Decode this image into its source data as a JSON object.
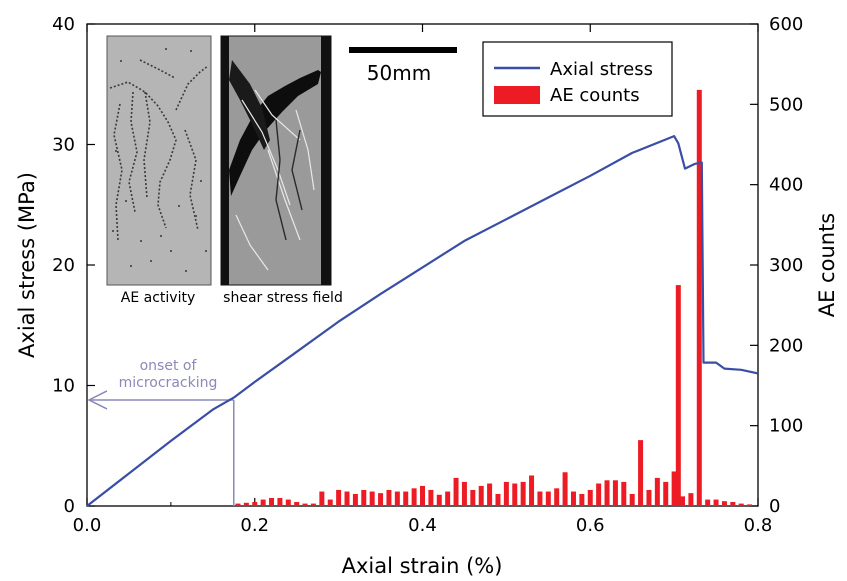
{
  "chart_data": {
    "type": "bar",
    "xlabel": "Axial strain (%)",
    "ylabel": "Axial stress (MPa)",
    "y2label": "AE counts",
    "xlim": [
      0,
      0.8
    ],
    "ylim": [
      0,
      40
    ],
    "y2lim": [
      0,
      600
    ],
    "x_ticks": [
      "0.0",
      "0.2",
      "0.4",
      "0.6",
      "0.8"
    ],
    "y_ticks": [
      "0",
      "10",
      "20",
      "30",
      "40"
    ],
    "y2_ticks": [
      "0",
      "100",
      "200",
      "300",
      "400",
      "500",
      "600"
    ],
    "legend": {
      "position": "top-right",
      "entries": [
        {
          "name": "Axial stress",
          "kind": "line"
        },
        {
          "name": "AE counts",
          "kind": "bar"
        }
      ]
    },
    "colors": {
      "stress": "#3a4ea6",
      "ae": "#ed1c24",
      "annotation": "#8c89b8"
    },
    "series": [
      {
        "name": "Axial stress",
        "axis": "left",
        "x": [
          0.0,
          0.05,
          0.1,
          0.15,
          0.175,
          0.2,
          0.25,
          0.3,
          0.35,
          0.4,
          0.45,
          0.5,
          0.55,
          0.6,
          0.65,
          0.7,
          0.705,
          0.713,
          0.725,
          0.733,
          0.735,
          0.74,
          0.75,
          0.76,
          0.78,
          0.8
        ],
        "y": [
          0.0,
          2.7,
          5.4,
          8.0,
          9.0,
          10.3,
          12.8,
          15.3,
          17.6,
          19.8,
          22.0,
          23.8,
          25.6,
          27.4,
          29.3,
          30.7,
          30.1,
          28.0,
          28.4,
          28.5,
          11.9,
          11.9,
          11.9,
          11.4,
          11.3,
          11.0
        ]
      },
      {
        "name": "AE counts",
        "axis": "right",
        "x": [
          0.18,
          0.19,
          0.2,
          0.21,
          0.22,
          0.23,
          0.24,
          0.25,
          0.26,
          0.27,
          0.28,
          0.29,
          0.3,
          0.31,
          0.32,
          0.33,
          0.34,
          0.35,
          0.36,
          0.37,
          0.38,
          0.39,
          0.4,
          0.41,
          0.42,
          0.43,
          0.44,
          0.45,
          0.46,
          0.47,
          0.48,
          0.49,
          0.5,
          0.51,
          0.52,
          0.53,
          0.54,
          0.55,
          0.56,
          0.57,
          0.58,
          0.59,
          0.6,
          0.61,
          0.62,
          0.63,
          0.64,
          0.65,
          0.66,
          0.67,
          0.68,
          0.69,
          0.7,
          0.705,
          0.71,
          0.72,
          0.73,
          0.74,
          0.75,
          0.76,
          0.77,
          0.78,
          0.79
        ],
        "values": [
          3,
          4,
          5,
          8,
          10,
          10,
          8,
          5,
          3,
          3,
          18,
          8,
          20,
          18,
          15,
          20,
          18,
          16,
          20,
          18,
          18,
          22,
          25,
          20,
          14,
          18,
          35,
          30,
          20,
          25,
          28,
          15,
          30,
          28,
          30,
          38,
          18,
          18,
          22,
          42,
          18,
          15,
          20,
          28,
          32,
          32,
          30,
          15,
          82,
          20,
          35,
          30,
          43,
          275,
          12,
          16,
          518,
          8,
          8,
          6,
          5,
          3,
          2
        ]
      }
    ],
    "inset": {
      "captions": [
        "AE activity",
        "shear stress field"
      ],
      "scale_bar": "50mm"
    },
    "annotations": [
      {
        "text_lines": [
          "onset of",
          "microcracking"
        ],
        "x": 0.175,
        "y": 8.8
      }
    ]
  }
}
